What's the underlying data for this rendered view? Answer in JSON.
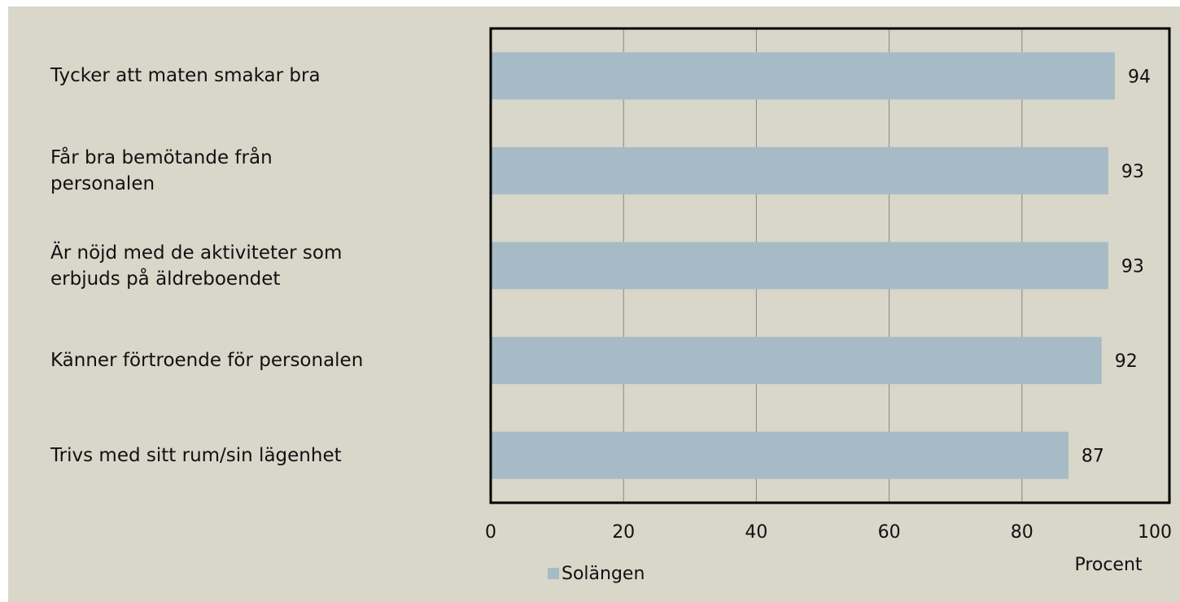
{
  "chart_data": {
    "type": "bar",
    "orientation": "horizontal",
    "categories": [
      "Tycker att maten smakar bra",
      "Får bra bemötande från\npersonalen",
      "Är nöjd med de aktiviteter som\nerbjuds på äldreboendet",
      "Känner förtroende för personalen",
      "Trivs med sitt rum/sin lägenhet"
    ],
    "series": [
      {
        "name": "Solängen",
        "color": "#a7bbc6",
        "values": [
          94,
          93,
          93,
          92,
          87
        ]
      }
    ],
    "xlim": [
      0,
      100
    ],
    "xticks": [
      0,
      20,
      40,
      60,
      80,
      100
    ],
    "x_label": "Procent",
    "grid": true,
    "legend": "bottom"
  }
}
